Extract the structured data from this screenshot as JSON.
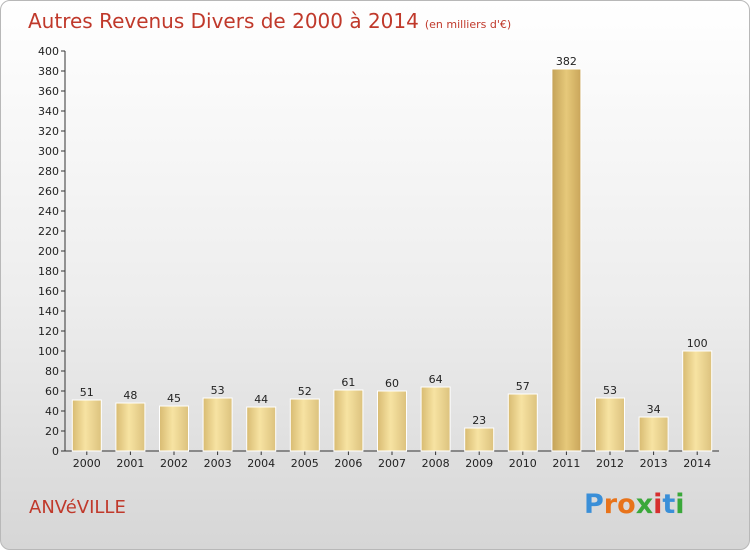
{
  "title": "Autres Revenus Divers de 2000 à 2014",
  "title_unit": "(en milliers d'€)",
  "location": "ANVéVILLE",
  "logo": {
    "letters": [
      "P",
      "r",
      "o",
      "x",
      "i",
      "t",
      "i"
    ],
    "colors": [
      "#3a8fd8",
      "#e8731a",
      "#e8731a",
      "#3aa83a",
      "#d62f2f",
      "#3a8fd8",
      "#3aa83a"
    ]
  },
  "colors": {
    "title": "#c0392b",
    "bar_light": "#f7e3a2",
    "bar_dark": "#d8bb72",
    "bar_highlight": "#c9a55a"
  },
  "chart_data": {
    "type": "bar",
    "categories": [
      "2000",
      "2001",
      "2002",
      "2003",
      "2004",
      "2005",
      "2006",
      "2007",
      "2008",
      "2009",
      "2010",
      "2011",
      "2012",
      "2013",
      "2014"
    ],
    "values": [
      51,
      48,
      45,
      53,
      44,
      52,
      61,
      60,
      64,
      23,
      57,
      382,
      53,
      34,
      100
    ],
    "ylim": [
      0,
      400
    ],
    "ytick_step": 20,
    "grid": false,
    "highlight_category": "2011",
    "data_labels": true
  }
}
